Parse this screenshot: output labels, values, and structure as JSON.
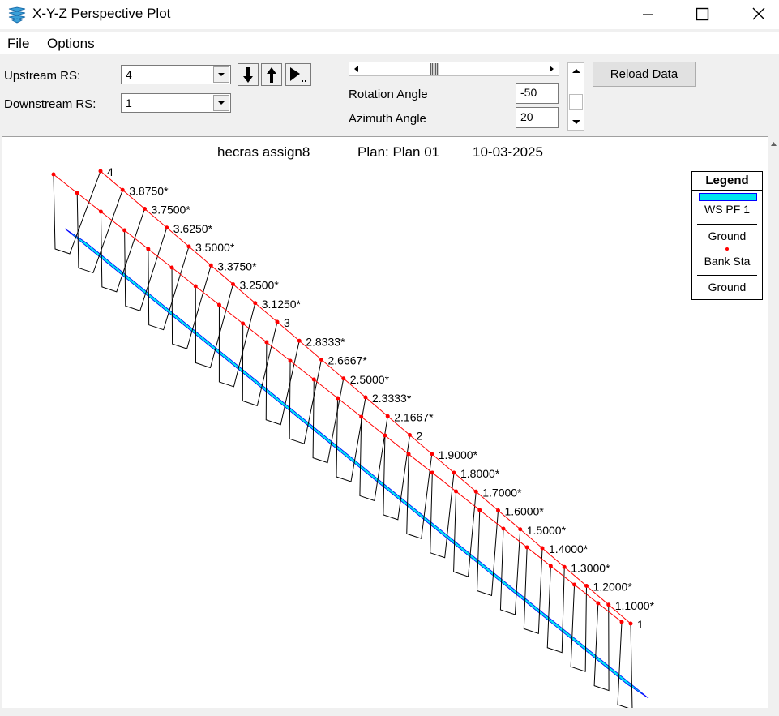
{
  "window": {
    "title": "X-Y-Z Perspective Plot"
  },
  "menu": {
    "file": "File",
    "options": "Options"
  },
  "controls": {
    "upstream_label": "Upstream RS:",
    "upstream_value": "4",
    "downstream_label": "Downstream RS:",
    "downstream_value": "1",
    "rotation_label": "Rotation Angle",
    "rotation_value": "-50",
    "azimuth_label": "Azimuth Angle",
    "azimuth_value": "20",
    "reload_label": "Reload Data"
  },
  "plot": {
    "project": "hecras assign8",
    "plan": "Plan: Plan 01",
    "date": "10-03-2025",
    "river_stations": [
      "4",
      "3.8750*",
      "3.7500*",
      "3.6250*",
      "3.5000*",
      "3.3750*",
      "3.2500*",
      "3.1250*",
      "3",
      "2.8333*",
      "2.6667*",
      "2.5000*",
      "2.3333*",
      "2.1667*",
      "2",
      "1.9000*",
      "1.8000*",
      "1.7000*",
      "1.6000*",
      "1.5000*",
      "1.4000*",
      "1.3000*",
      "1.2000*",
      "1.1000*",
      "1"
    ],
    "colors": {
      "water": "#00e5ee",
      "bank": "#ff0000",
      "ground": "#000000",
      "water_edge": "#0000ff"
    }
  },
  "legend": {
    "title": "Legend",
    "ws_label": "WS PF 1",
    "ground_label": "Ground",
    "bank_label": "Bank Sta",
    "ground2_label": "Ground"
  }
}
